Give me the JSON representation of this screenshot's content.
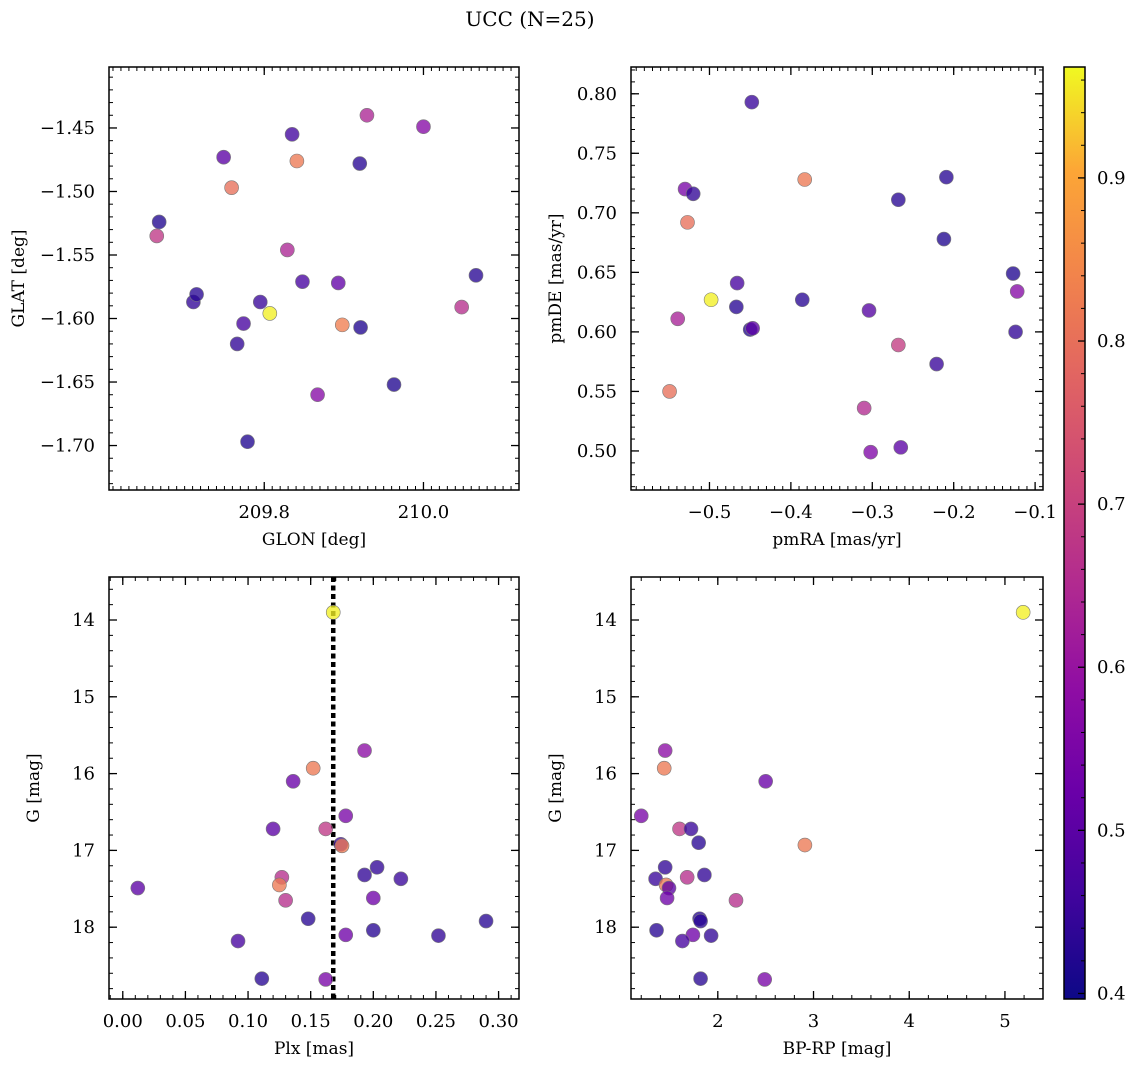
{
  "title": "UCC (N=25)",
  "colorbar": {
    "min": 0.3966,
    "max": 0.968,
    "ticks": [
      0.4,
      0.5,
      0.6,
      0.7,
      0.8,
      0.9
    ],
    "tick_labels": [
      "0.4",
      "0.5",
      "0.6",
      "0.7",
      "0.8",
      "0.9"
    ]
  },
  "chart_data": [
    {
      "type": "scatter",
      "id": "glon-glat",
      "xlabel": "GLON [deg]",
      "ylabel": "GLAT [deg]",
      "xlim": [
        209.605,
        210.12
      ],
      "ylim": [
        -1.735,
        -1.402
      ],
      "x_ticks": [
        209.8,
        210.0
      ],
      "x_tick_labels": [
        "209.8",
        "210.0"
      ],
      "y_ticks": [
        -1.45,
        -1.5,
        -1.55,
        -1.6,
        -1.65,
        -1.7
      ],
      "y_tick_labels": [
        "−1.45",
        "−1.50",
        "−1.55",
        "−1.60",
        "−1.65",
        "−1.70"
      ],
      "points": [
        {
          "x": 209.668,
          "y": -1.524,
          "c": 0.42
        },
        {
          "x": 209.665,
          "y": -1.535,
          "c": 0.68
        },
        {
          "x": 209.711,
          "y": -1.587,
          "c": 0.44
        },
        {
          "x": 209.715,
          "y": -1.581,
          "c": 0.43
        },
        {
          "x": 209.749,
          "y": -1.473,
          "c": 0.5
        },
        {
          "x": 209.759,
          "y": -1.497,
          "c": 0.8
        },
        {
          "x": 209.766,
          "y": -1.62,
          "c": 0.44
        },
        {
          "x": 209.774,
          "y": -1.604,
          "c": 0.47
        },
        {
          "x": 209.779,
          "y": -1.697,
          "c": 0.42
        },
        {
          "x": 209.795,
          "y": -1.587,
          "c": 0.45
        },
        {
          "x": 209.807,
          "y": -1.596,
          "c": 0.96
        },
        {
          "x": 209.829,
          "y": -1.546,
          "c": 0.64
        },
        {
          "x": 209.835,
          "y": -1.455,
          "c": 0.46
        },
        {
          "x": 209.841,
          "y": -1.476,
          "c": 0.82
        },
        {
          "x": 209.848,
          "y": -1.571,
          "c": 0.47
        },
        {
          "x": 209.867,
          "y": -1.66,
          "c": 0.57
        },
        {
          "x": 209.893,
          "y": -1.572,
          "c": 0.51
        },
        {
          "x": 209.898,
          "y": -1.605,
          "c": 0.83
        },
        {
          "x": 209.92,
          "y": -1.478,
          "c": 0.43
        },
        {
          "x": 209.921,
          "y": -1.607,
          "c": 0.42
        },
        {
          "x": 209.929,
          "y": -1.44,
          "c": 0.64
        },
        {
          "x": 209.963,
          "y": -1.652,
          "c": 0.42
        },
        {
          "x": 210.0,
          "y": -1.449,
          "c": 0.57
        },
        {
          "x": 210.048,
          "y": -1.591,
          "c": 0.66
        },
        {
          "x": 210.066,
          "y": -1.566,
          "c": 0.43
        }
      ]
    },
    {
      "type": "scatter",
      "id": "pmra-pmde",
      "xlabel": "pmRA [mas/yr]",
      "ylabel": "pmDE [mas/yr]",
      "xlim": [
        -0.5964,
        -0.0903
      ],
      "ylim": [
        0.4672,
        0.8225
      ],
      "x_ticks": [
        -0.5,
        -0.4,
        -0.3,
        -0.2,
        -0.1
      ],
      "x_tick_labels": [
        "−0.5",
        "−0.4",
        "−0.3",
        "−0.2",
        "−0.1"
      ],
      "y_ticks": [
        0.5,
        0.55,
        0.6,
        0.65,
        0.7,
        0.75,
        0.8
      ],
      "y_tick_labels": [
        "0.50",
        "0.55",
        "0.60",
        "0.65",
        "0.70",
        "0.75",
        "0.80"
      ],
      "points": [
        {
          "x": -0.448,
          "y": 0.793,
          "c": 0.45
        },
        {
          "x": -0.383,
          "y": 0.728,
          "c": 0.82
        },
        {
          "x": -0.209,
          "y": 0.73,
          "c": 0.43
        },
        {
          "x": -0.53,
          "y": 0.72,
          "c": 0.55
        },
        {
          "x": -0.52,
          "y": 0.716,
          "c": 0.44
        },
        {
          "x": -0.527,
          "y": 0.692,
          "c": 0.8
        },
        {
          "x": -0.268,
          "y": 0.711,
          "c": 0.43
        },
        {
          "x": -0.212,
          "y": 0.678,
          "c": 0.42
        },
        {
          "x": -0.127,
          "y": 0.649,
          "c": 0.42
        },
        {
          "x": -0.466,
          "y": 0.641,
          "c": 0.47
        },
        {
          "x": -0.122,
          "y": 0.634,
          "c": 0.57
        },
        {
          "x": -0.498,
          "y": 0.627,
          "c": 0.96
        },
        {
          "x": -0.386,
          "y": 0.627,
          "c": 0.43
        },
        {
          "x": -0.467,
          "y": 0.621,
          "c": 0.43
        },
        {
          "x": -0.304,
          "y": 0.618,
          "c": 0.49
        },
        {
          "x": -0.539,
          "y": 0.611,
          "c": 0.63
        },
        {
          "x": -0.45,
          "y": 0.602,
          "c": 0.42
        },
        {
          "x": -0.447,
          "y": 0.603,
          "c": 0.5
        },
        {
          "x": -0.124,
          "y": 0.6,
          "c": 0.44
        },
        {
          "x": -0.268,
          "y": 0.589,
          "c": 0.69
        },
        {
          "x": -0.221,
          "y": 0.573,
          "c": 0.45
        },
        {
          "x": -0.549,
          "y": 0.55,
          "c": 0.8
        },
        {
          "x": -0.31,
          "y": 0.536,
          "c": 0.65
        },
        {
          "x": -0.265,
          "y": 0.503,
          "c": 0.5
        },
        {
          "x": -0.302,
          "y": 0.499,
          "c": 0.56
        }
      ]
    },
    {
      "type": "scatter",
      "id": "plx-g",
      "xlabel": "Plx [mas]",
      "ylabel": "G [mag]",
      "xlim": [
        -0.011,
        0.3163
      ],
      "ylim": [
        18.935,
        13.44
      ],
      "x_ticks": [
        0.0,
        0.05,
        0.1,
        0.15,
        0.2,
        0.25,
        0.3
      ],
      "x_tick_labels": [
        "0.00",
        "0.05",
        "0.10",
        "0.15",
        "0.20",
        "0.25",
        "0.30"
      ],
      "y_ticks": [
        14,
        15,
        16,
        17,
        18
      ],
      "y_tick_labels": [
        "14",
        "15",
        "16",
        "17",
        "18"
      ],
      "vline": {
        "x": 0.168
      },
      "points": [
        {
          "x": 0.168,
          "y": 13.9,
          "c": 0.96
        },
        {
          "x": 0.193,
          "y": 15.7,
          "c": 0.58
        },
        {
          "x": 0.152,
          "y": 15.93,
          "c": 0.82
        },
        {
          "x": 0.136,
          "y": 16.1,
          "c": 0.52
        },
        {
          "x": 0.178,
          "y": 16.55,
          "c": 0.55
        },
        {
          "x": 0.12,
          "y": 16.72,
          "c": 0.5
        },
        {
          "x": 0.162,
          "y": 16.72,
          "c": 0.68
        },
        {
          "x": 0.174,
          "y": 16.92,
          "c": 0.46
        },
        {
          "x": 0.175,
          "y": 16.94,
          "c": 0.82
        },
        {
          "x": 0.203,
          "y": 17.22,
          "c": 0.44
        },
        {
          "x": 0.193,
          "y": 17.32,
          "c": 0.44
        },
        {
          "x": 0.127,
          "y": 17.35,
          "c": 0.66
        },
        {
          "x": 0.222,
          "y": 17.37,
          "c": 0.45
        },
        {
          "x": 0.125,
          "y": 17.45,
          "c": 0.82
        },
        {
          "x": 0.012,
          "y": 17.49,
          "c": 0.5
        },
        {
          "x": 0.2,
          "y": 17.62,
          "c": 0.53
        },
        {
          "x": 0.13,
          "y": 17.65,
          "c": 0.66
        },
        {
          "x": 0.148,
          "y": 17.89,
          "c": 0.43
        },
        {
          "x": 0.29,
          "y": 17.92,
          "c": 0.43
        },
        {
          "x": 0.2,
          "y": 18.04,
          "c": 0.43
        },
        {
          "x": 0.178,
          "y": 18.1,
          "c": 0.53
        },
        {
          "x": 0.252,
          "y": 18.11,
          "c": 0.44
        },
        {
          "x": 0.092,
          "y": 18.18,
          "c": 0.47
        },
        {
          "x": 0.111,
          "y": 18.67,
          "c": 0.43
        },
        {
          "x": 0.162,
          "y": 18.68,
          "c": 0.55
        }
      ]
    },
    {
      "type": "scatter",
      "id": "bprp-g",
      "xlabel": "BP-RP [mag]",
      "ylabel": "G [mag]",
      "xlim": [
        1.0931,
        5.3976
      ],
      "ylim": [
        18.935,
        13.44
      ],
      "x_ticks": [
        2,
        3,
        4,
        5
      ],
      "x_tick_labels": [
        "2",
        "3",
        "4",
        "5"
      ],
      "y_ticks": [
        14,
        15,
        16,
        17,
        18
      ],
      "y_tick_labels": [
        "14",
        "15",
        "16",
        "17",
        "18"
      ],
      "points": [
        {
          "x": 5.19,
          "y": 13.9,
          "c": 0.96
        },
        {
          "x": 1.45,
          "y": 15.7,
          "c": 0.58
        },
        {
          "x": 1.44,
          "y": 15.93,
          "c": 0.82
        },
        {
          "x": 2.5,
          "y": 16.1,
          "c": 0.52
        },
        {
          "x": 1.2,
          "y": 16.55,
          "c": 0.55
        },
        {
          "x": 1.6,
          "y": 16.72,
          "c": 0.68
        },
        {
          "x": 1.72,
          "y": 16.72,
          "c": 0.45
        },
        {
          "x": 1.8,
          "y": 16.9,
          "c": 0.43
        },
        {
          "x": 2.91,
          "y": 16.93,
          "c": 0.82
        },
        {
          "x": 1.45,
          "y": 17.22,
          "c": 0.44
        },
        {
          "x": 1.86,
          "y": 17.32,
          "c": 0.44
        },
        {
          "x": 1.68,
          "y": 17.35,
          "c": 0.66
        },
        {
          "x": 1.35,
          "y": 17.37,
          "c": 0.45
        },
        {
          "x": 1.46,
          "y": 17.45,
          "c": 0.82
        },
        {
          "x": 1.49,
          "y": 17.49,
          "c": 0.5
        },
        {
          "x": 1.47,
          "y": 17.62,
          "c": 0.53
        },
        {
          "x": 2.19,
          "y": 17.65,
          "c": 0.66
        },
        {
          "x": 1.81,
          "y": 17.89,
          "c": 0.43
        },
        {
          "x": 1.82,
          "y": 17.92,
          "c": 0.43
        },
        {
          "x": 1.36,
          "y": 18.04,
          "c": 0.43
        },
        {
          "x": 1.74,
          "y": 18.1,
          "c": 0.53
        },
        {
          "x": 1.93,
          "y": 18.11,
          "c": 0.44
        },
        {
          "x": 1.63,
          "y": 18.18,
          "c": 0.47
        },
        {
          "x": 1.82,
          "y": 18.67,
          "c": 0.43
        },
        {
          "x": 2.49,
          "y": 18.68,
          "c": 0.55
        }
      ]
    }
  ]
}
